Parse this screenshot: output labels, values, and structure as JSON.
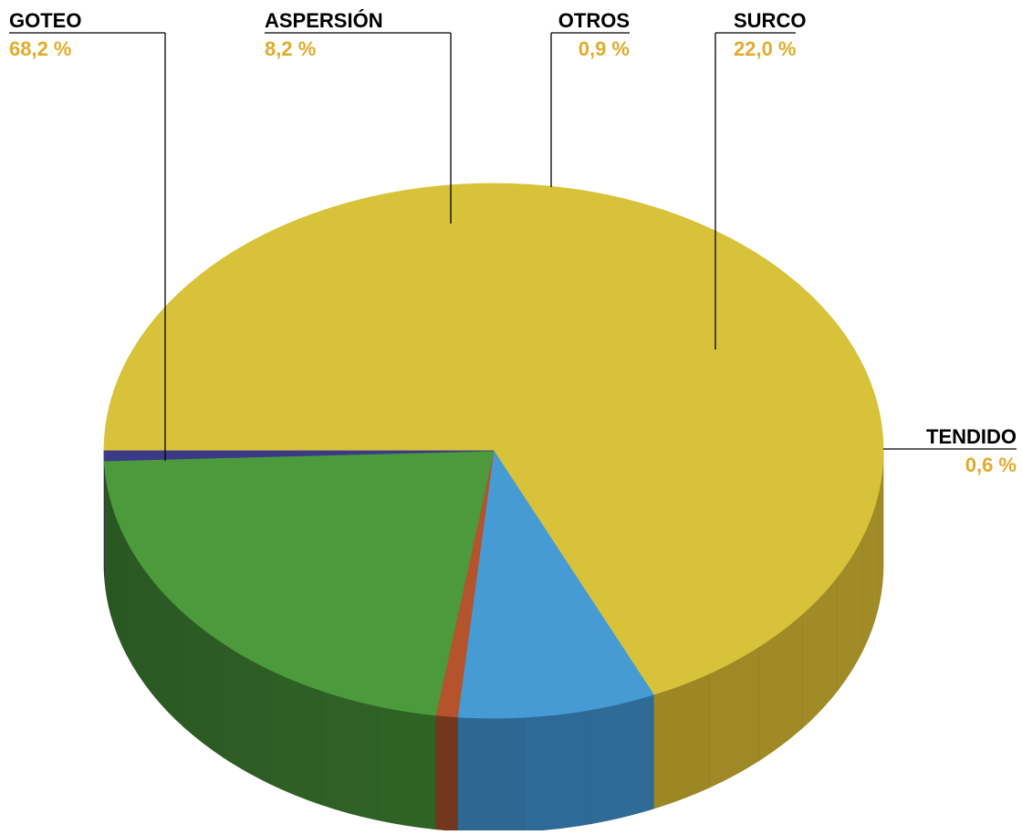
{
  "chart_data": {
    "type": "pie",
    "style": "3d",
    "title": "",
    "label_color": "#e0ac2c",
    "name_color": "#000000",
    "leader_color": "#000000",
    "slices": [
      {
        "label": "GOTEO",
        "value": 68.2,
        "display": "68,2 %",
        "color": "#d8c23a",
        "side_color": "#a08a26"
      },
      {
        "label": "ASPERSIÓN",
        "value": 8.2,
        "display": "8,2 %",
        "color": "#469bd4",
        "side_color": "#2f6f9c"
      },
      {
        "label": "OTROS",
        "value": 0.9,
        "display": "0,9 %",
        "color": "#b4532c",
        "side_color": "#7c3a20"
      },
      {
        "label": "SURCO",
        "value": 22.0,
        "display": "22,0 %",
        "color": "#4c9a3c",
        "side_color": "#346c2a"
      },
      {
        "label": "TENDIDO",
        "value": 0.6,
        "display": "0,6 %",
        "color": "#3b3a86",
        "side_color": "#27265c"
      }
    ]
  }
}
